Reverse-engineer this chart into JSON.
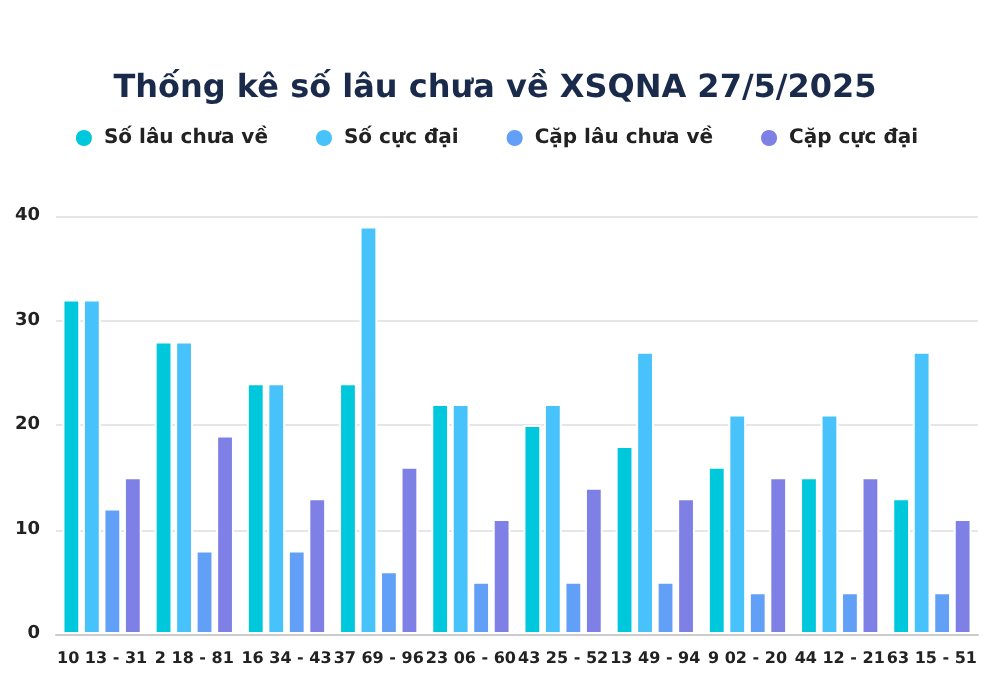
{
  "chart_data": {
    "type": "bar",
    "title": "Thống kê số lâu chưa về XSQNA 27/5/2025",
    "categories": [
      "10 13 - 31",
      "2 18 - 81",
      "16 34 - 43",
      "37 69 - 96",
      "23 06 - 60",
      "43 25 - 52",
      "13 49 - 94",
      "9 02 - 20",
      "44 12 - 21",
      "63 15 - 51"
    ],
    "series": [
      {
        "name": "Số lâu chưa về",
        "color": "#00c8dc",
        "values": [
          32,
          28,
          24,
          24,
          22,
          20,
          18,
          16,
          15,
          13
        ]
      },
      {
        "name": "Số cực đại",
        "color": "#48c2fb",
        "values": [
          32,
          28,
          24,
          39,
          22,
          22,
          27,
          21,
          21,
          27
        ]
      },
      {
        "name": "Cặp lâu chưa về",
        "color": "#62a0f8",
        "values": [
          12,
          8,
          8,
          6,
          5,
          5,
          5,
          4,
          4,
          4
        ]
      },
      {
        "name": "Cặp cực đại",
        "color": "#7e80e6",
        "values": [
          15,
          19,
          13,
          16,
          11,
          14,
          13,
          15,
          15,
          11
        ]
      }
    ],
    "ylim": [
      0,
      40
    ],
    "yticks": [
      0,
      10,
      20,
      30,
      40
    ],
    "grid": "y",
    "legend": "top"
  }
}
